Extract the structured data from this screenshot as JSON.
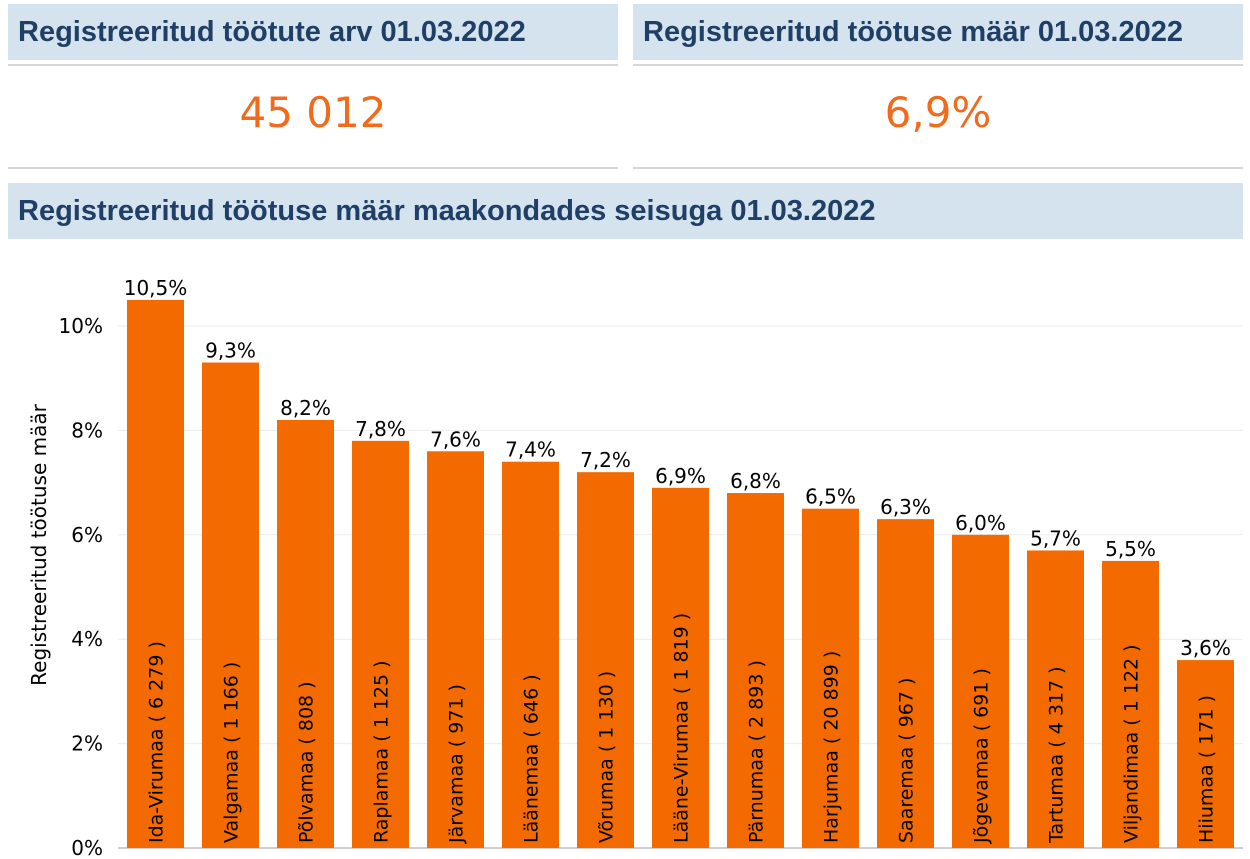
{
  "kpi": [
    {
      "title": "Registreeritud töötute arv 01.03.2022",
      "value": "45 012"
    },
    {
      "title": "Registreeritud töötuse määr 01.03.2022",
      "value": "6,9%"
    }
  ],
  "colors": {
    "bar": "#f26a00",
    "value": "#f26a1b",
    "title_bg": "#d4e3ee",
    "title_fg": "#1f3f66"
  },
  "chart_data": {
    "type": "bar",
    "title": "Registreeritud töötuse määr maakondades seisuga 01.03.2022",
    "ylabel": "Registreeritud töötuse määr",
    "xlabel": "",
    "ylim": [
      0,
      11
    ],
    "yticks": [
      "0%",
      "2%",
      "4%",
      "6%",
      "8%",
      "10%"
    ],
    "ytick_values": [
      0,
      2,
      4,
      6,
      8,
      10
    ],
    "grid": true,
    "categories": [
      "Ida-Virumaa ( 6 279 )",
      "Valgamaa ( 1 166 )",
      "Põlvamaa ( 808 )",
      "Raplamaa ( 1 125 )",
      "Järvamaa ( 971 )",
      "Läänemaa ( 646 )",
      "Võrumaa ( 1 130 )",
      "Lääne-Virumaa ( 1 819 )",
      "Pärnumaa ( 2 893 )",
      "Harjumaa ( 20 899 )",
      "Saaremaa ( 967 )",
      "Jõgevamaa ( 691 )",
      "Tartumaa ( 4 317 )",
      "Viljandimaa ( 1 122 )",
      "Hiiumaa ( 171 )"
    ],
    "values": [
      10.5,
      9.3,
      8.2,
      7.8,
      7.6,
      7.4,
      7.2,
      6.9,
      6.8,
      6.5,
      6.3,
      6.0,
      5.7,
      5.5,
      3.6
    ],
    "value_labels": [
      "10,5%",
      "9,3%",
      "8,2%",
      "7,8%",
      "7,6%",
      "7,4%",
      "7,2%",
      "6,9%",
      "6,8%",
      "6,5%",
      "6,3%",
      "6,0%",
      "5,7%",
      "5,5%",
      "3,6%"
    ]
  }
}
